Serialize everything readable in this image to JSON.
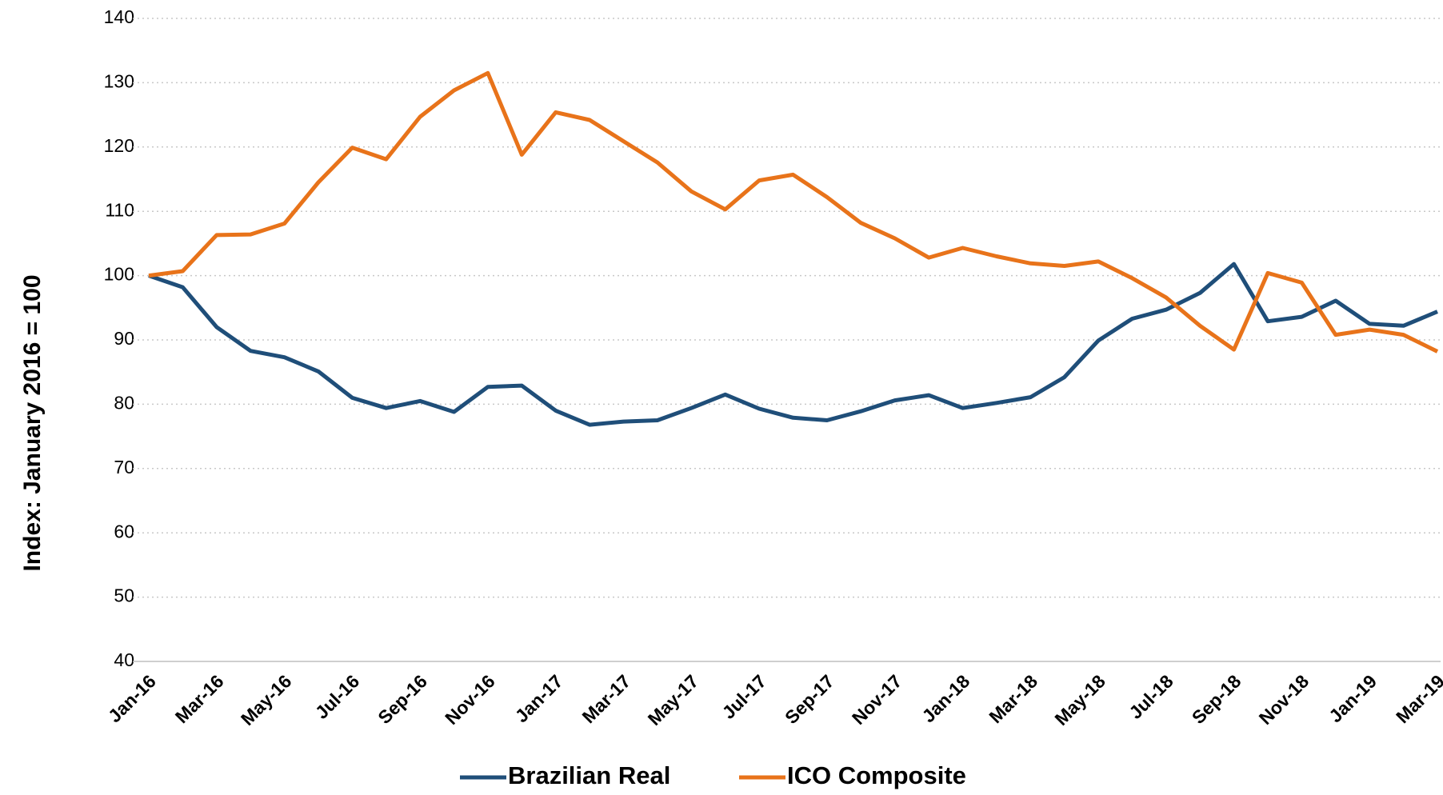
{
  "chart_data": {
    "type": "line",
    "y_label": "Index: January 2016 = 100",
    "categories": [
      "Jan-16",
      null,
      "Mar-16",
      null,
      "May-16",
      null,
      "Jul-16",
      null,
      "Sep-16",
      null,
      "Nov-16",
      null,
      "Jan-17",
      null,
      "Mar-17",
      null,
      "May-17",
      null,
      "Jul-17",
      null,
      "Sep-17",
      null,
      "Nov-17",
      null,
      "Jan-18",
      null,
      "Mar-18",
      null,
      "May-18",
      null,
      "Jul-18",
      null,
      "Sep-18",
      null,
      "Nov-18",
      null,
      "Jan-19",
      null,
      "Mar-19"
    ],
    "series": [
      {
        "name": "Brazilian Real",
        "color": "#1f4e79",
        "values": [
          100,
          98.2,
          92,
          88.3,
          87.3,
          85.1,
          81,
          79.4,
          80.5,
          78.8,
          82.7,
          82.9,
          79,
          76.8,
          77.3,
          77.5,
          79.4,
          81.5,
          79.3,
          77.9,
          77.5,
          78.9,
          80.6,
          81.4,
          79.4,
          80.2,
          81.1,
          84.2,
          89.9,
          93.3,
          94.7,
          97.3,
          101.8,
          92.9,
          93.6,
          96.1,
          92.5,
          92.2,
          94.4
        ]
      },
      {
        "name": "ICO Composite",
        "color": "#e8731a",
        "values": [
          100,
          100.7,
          106.3,
          106.4,
          108.1,
          114.5,
          119.9,
          118.1,
          124.7,
          128.8,
          131.5,
          118.8,
          125.4,
          124.2,
          120.9,
          117.6,
          113.1,
          110.3,
          114.8,
          115.7,
          112.2,
          108.2,
          105.8,
          102.8,
          104.3,
          103,
          101.9,
          101.5,
          102.2,
          99.6,
          96.6,
          92.2,
          88.5,
          100.4,
          98.9,
          90.8,
          91.6,
          90.8,
          88.2
        ]
      }
    ],
    "ylim": [
      40,
      140
    ],
    "yticks": [
      40,
      50,
      60,
      70,
      80,
      90,
      100,
      110,
      120,
      130,
      140
    ],
    "grid": true,
    "legend": "bottom"
  }
}
